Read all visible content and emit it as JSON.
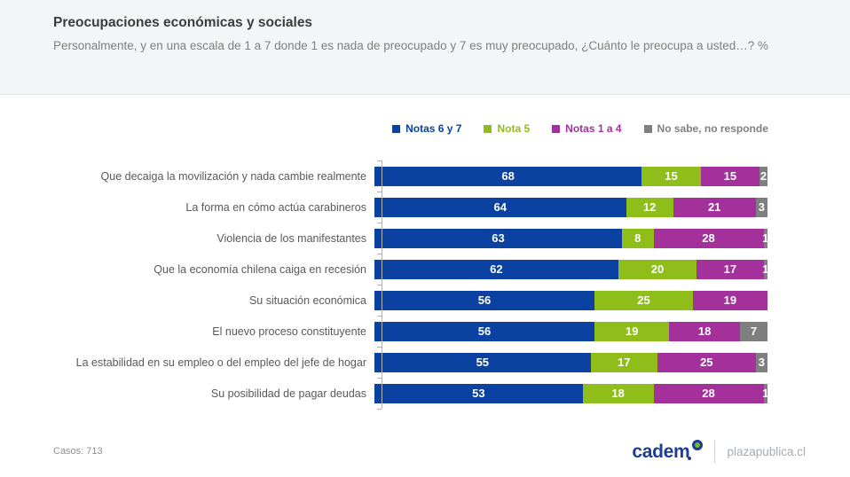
{
  "header": {
    "title": "Preocupaciones económicas y sociales",
    "subtitle": "Personalmente, y en una escala de 1 a 7 donde 1 es nada de preocupado y 7 es muy preocupado, ¿Cuánto le preocupa a usted…? %"
  },
  "chart_data": {
    "type": "bar",
    "orientation": "horizontal",
    "stacked": true,
    "value_labels": true,
    "legend_position": "top",
    "xlim": [
      0,
      100
    ],
    "categories": [
      "Que decaiga la movilización y nada cambie realmente",
      "La forma en cómo actúa carabineros",
      "Violencia de los manifestantes",
      "Que la economía chilena caiga en recesión",
      "Su situación económica",
      "El nuevo proceso constituyente",
      "La estabilidad en su empleo o del empleo del jefe de hogar",
      "Su posibilidad de pagar deudas"
    ],
    "series": [
      {
        "name": "Notas 6 y 7",
        "color": "#0b41a1",
        "values": [
          68,
          64,
          63,
          62,
          56,
          56,
          55,
          53
        ]
      },
      {
        "name": "Nota 5",
        "color": "#8fbe1a",
        "values": [
          15,
          12,
          8,
          20,
          25,
          19,
          17,
          18
        ]
      },
      {
        "name": "Notas 1 a 4",
        "color": "#a3309b",
        "values": [
          15,
          21,
          28,
          17,
          19,
          18,
          25,
          28
        ]
      },
      {
        "name": "No sabe, no responde",
        "color": "#7f7f7f",
        "values": [
          2,
          3,
          1,
          1,
          0,
          7,
          3,
          1
        ]
      }
    ]
  },
  "footer": {
    "cases": "Casos: 713",
    "brand": "cadem",
    "site": "plazapublica.cl"
  }
}
